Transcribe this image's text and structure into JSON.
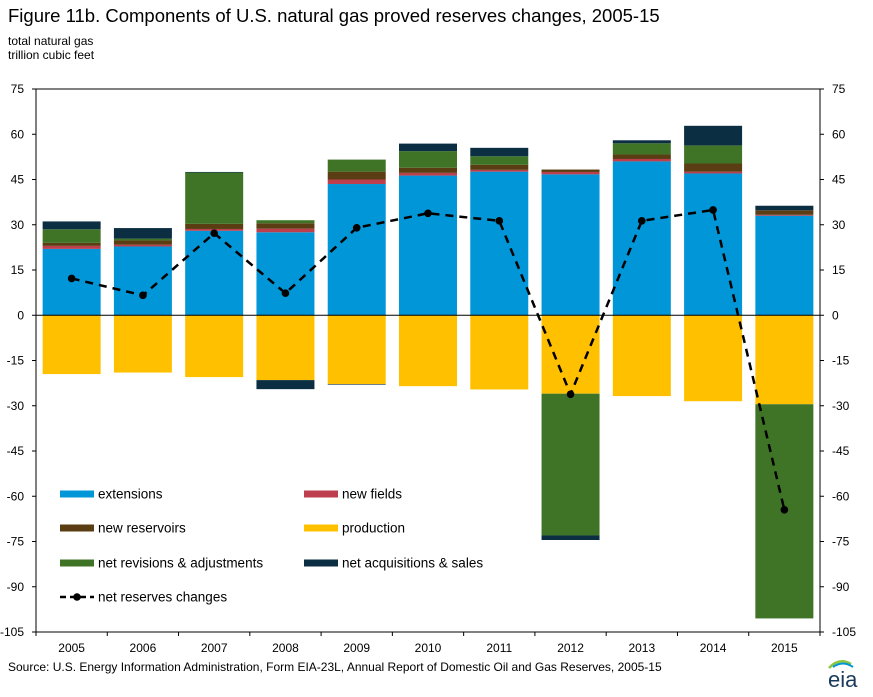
{
  "title": "Figure 11b. Components of U.S. natural gas proved reserves changes, 2005-15",
  "unit_line1": "total natural gas",
  "unit_line2": "trillion cubic feet",
  "source": "Source: U.S. Energy Information Administration, Form EIA-23L, Annual Report of Domestic Oil and Gas Reserves, 2005-15",
  "logo_text": "eia",
  "colors": {
    "extensions": "#0096d7",
    "new_fields": "#bd3e4c",
    "new_reservoirs": "#5a3d12",
    "production": "#ffc000",
    "net_revisions": "#3f7427",
    "net_acquisitions": "#0b2e43",
    "net_reserves_line": "#000000"
  },
  "chart_data": {
    "type": "bar",
    "categories": [
      "2005",
      "2006",
      "2007",
      "2008",
      "2009",
      "2010",
      "2011",
      "2012",
      "2013",
      "2014",
      "2015"
    ],
    "ylim": [
      -105,
      75
    ],
    "yticks": [
      75,
      60,
      45,
      30,
      15,
      0,
      -15,
      -30,
      -45,
      -60,
      -75,
      -90,
      -105
    ],
    "ytick_labels": [
      "75",
      "60",
      "45",
      "30",
      "15",
      "0",
      "-15",
      "-30",
      "-45",
      "-60",
      "-75",
      "-90",
      "-105"
    ],
    "series": [
      {
        "name": "extensions",
        "key": "extensions",
        "values": [
          22.0,
          22.8,
          28.0,
          27.5,
          43.5,
          46.3,
          47.6,
          46.7,
          51.0,
          47.0,
          33.0
        ]
      },
      {
        "name": "new fields",
        "key": "new_fields",
        "values": [
          1.0,
          0.6,
          0.6,
          1.2,
          1.5,
          0.9,
          0.6,
          0.8,
          0.8,
          0.6,
          0.3
        ]
      },
      {
        "name": "new reservoirs",
        "key": "new_reservoirs",
        "values": [
          1.0,
          1.4,
          1.7,
          1.8,
          2.6,
          1.7,
          1.7,
          0.8,
          1.5,
          2.7,
          1.5
        ]
      },
      {
        "name": "production",
        "key": "production",
        "values": [
          -19.5,
          -19.0,
          -20.5,
          -21.5,
          -22.8,
          -23.5,
          -24.6,
          -26.0,
          -26.8,
          -28.5,
          -29.5
        ]
      },
      {
        "name": "net revisions & adjustments",
        "key": "net_revisions",
        "values": [
          4.5,
          0.6,
          17.0,
          1.0,
          4.0,
          5.5,
          2.8,
          -47.0,
          3.7,
          6.0,
          -71.0
        ]
      },
      {
        "name": "net acquisitions & sales",
        "key": "net_acquisitions",
        "values": [
          2.6,
          3.5,
          0.2,
          -3.0,
          -0.2,
          2.5,
          2.8,
          -1.5,
          1.0,
          6.5,
          1.5
        ]
      },
      {
        "name": "net reserves changes",
        "key": "net_reserves_line",
        "kind": "line",
        "values": [
          12.2,
          6.6,
          27.2,
          7.3,
          29.0,
          33.8,
          31.3,
          -26.2,
          31.3,
          34.9,
          -64.5
        ]
      }
    ],
    "legend_position": "bottom-left",
    "grid": false
  }
}
